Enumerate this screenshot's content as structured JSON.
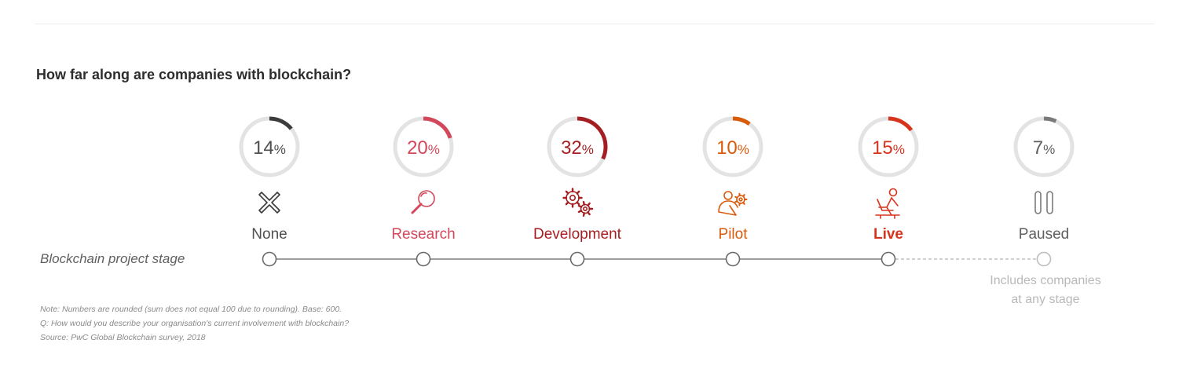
{
  "title": "How far along are companies with blockchain?",
  "axis_label": "Blockchain project stage",
  "paused_note": [
    "Includes companies",
    "at any stage"
  ],
  "footnotes": [
    "Note: Numbers are rounded (sum does not equal 100 due to rounding). Base: 600.",
    "Q: How would you describe your organisation's current involvement with blockchain?",
    "Source: PwC Global Blockchain survey, 2018"
  ],
  "chart_data": {
    "type": "donut-progress",
    "title": "How far along are companies with blockchain?",
    "xlabel": "Blockchain project stage",
    "unit": "%",
    "categories": [
      "None",
      "Research",
      "Development",
      "Pilot",
      "Live",
      "Paused"
    ],
    "values": [
      14,
      20,
      32,
      10,
      15,
      7
    ],
    "colors": [
      "#3c3c3c",
      "#d2485a",
      "#a51f22",
      "#d95a0b",
      "#d8341d",
      "#7a7a7a"
    ],
    "label_colors": [
      "#4f4f4f",
      "#d2485a",
      "#a51f22",
      "#d95a0b",
      "#d8341d",
      "#5f5f5f"
    ],
    "icons": [
      "cross-icon",
      "magnifier-icon",
      "gears-icon",
      "person-gear-icon",
      "person-laptop-icon",
      "pause-icon"
    ],
    "emphasized": "Live",
    "paused_line": "dashed"
  }
}
